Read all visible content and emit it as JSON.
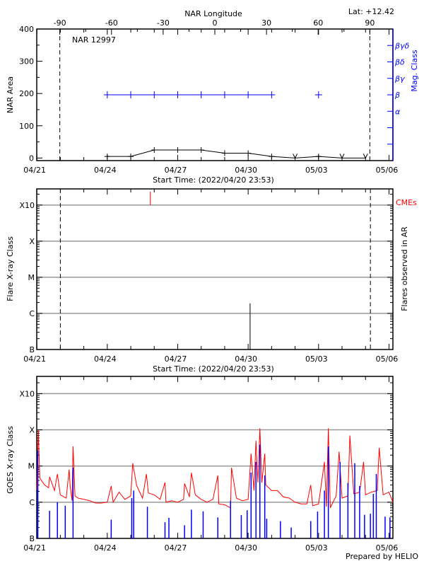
{
  "colors": {
    "axis": "#000000",
    "mag_class": "#0000ff",
    "cme": "#ff0000",
    "goes_long": "#ff0000",
    "goes_short": "#0000ff",
    "grid": "#999999"
  },
  "footer": "Prepared by HELIO",
  "chart_data": [
    {
      "type": "line",
      "title": "NAR 12997",
      "annotation": "Lat: +12.42",
      "xlabel": "Start Time: (2022/04/20 23:53)",
      "ylabel": "NAR Area",
      "y2label": "Mag. Class",
      "top_xlabel": "NAR Longitude",
      "xlim": [
        "2022-04-20 23:53",
        "2022-05-06 04:00"
      ],
      "x_ticks": [
        "04/21",
        "04/24",
        "04/27",
        "04/30",
        "05/03",
        "05/06"
      ],
      "ylim": [
        -8,
        400
      ],
      "y_ticks": [
        0,
        100,
        200,
        300,
        400
      ],
      "top_xlim": [
        -103.4,
        103.4
      ],
      "top_x_ticks": [
        -90,
        -60,
        -30,
        0,
        30,
        60,
        90
      ],
      "limb_longitudes": [
        -90,
        90
      ],
      "y2_levels": [
        "",
        "",
        "α",
        "β",
        "βγ",
        "βδ",
        "βγδ"
      ],
      "area": [
        {
          "t": "2022-04-24 00:00",
          "v": 5
        },
        {
          "t": "2022-04-25 00:00",
          "v": 5
        },
        {
          "t": "2022-04-26 00:00",
          "v": 25
        },
        {
          "t": "2022-04-27 00:00",
          "v": 25
        },
        {
          "t": "2022-04-28 00:00",
          "v": 25
        },
        {
          "t": "2022-04-29 00:00",
          "v": 15
        },
        {
          "t": "2022-04-30 00:00",
          "v": 15
        },
        {
          "t": "2022-05-01 00:00",
          "v": 5
        },
        {
          "t": "2022-05-02 00:00",
          "v": 0,
          "limit": true
        },
        {
          "t": "2022-05-03 00:00",
          "v": 5
        },
        {
          "t": "2022-05-04 00:00",
          "v": 0,
          "limit": true
        },
        {
          "t": "2022-05-05 00:00",
          "v": 0,
          "limit": true
        }
      ],
      "mag_class": [
        {
          "t": "2022-04-24 00:00",
          "c": "β"
        },
        {
          "t": "2022-04-25 00:00",
          "c": "β"
        },
        {
          "t": "2022-04-26 00:00",
          "c": "β"
        },
        {
          "t": "2022-04-27 00:00",
          "c": "β"
        },
        {
          "t": "2022-04-28 00:00",
          "c": "β"
        },
        {
          "t": "2022-04-29 00:00",
          "c": "β"
        },
        {
          "t": "2022-04-30 00:00",
          "c": "β"
        },
        {
          "t": "2022-05-01 00:00",
          "c": "β"
        },
        {
          "t": "2022-05-03 00:00",
          "c": "β"
        }
      ]
    },
    {
      "type": "bar",
      "xlabel": "Start Time: (2022/04/20 23:53)",
      "ylabel": "Flare X-ray Class",
      "y2label": "Flares observed in AR",
      "cme_label": "CMEs",
      "xlim": [
        "2022-04-20 23:53",
        "2022-05-06 04:00"
      ],
      "x_ticks": [
        "04/21",
        "04/24",
        "04/27",
        "04/30",
        "05/03",
        "05/06"
      ],
      "y_scale": "log",
      "ylim": [
        1e-07,
        0.0028
      ],
      "y_levels": [
        {
          "label": "B",
          "v": 1e-07
        },
        {
          "label": "C",
          "v": 1e-06
        },
        {
          "label": "M",
          "v": 1e-05
        },
        {
          "label": "X",
          "v": 0.0001
        },
        {
          "label": "X10",
          "v": 0.001
        }
      ],
      "limb_times": [
        "2022-04-22 00:00",
        "2022-05-05 05:00"
      ],
      "flares": [
        {
          "t": "2022-04-30 02:00",
          "v": 1.9e-06
        }
      ],
      "cmes": [
        {
          "t": "2022-04-25 20:00"
        }
      ]
    },
    {
      "type": "line",
      "ylabel": "GOES X-ray Class",
      "xlim": [
        "2022-04-20 23:53",
        "2022-05-06 04:00"
      ],
      "x_ticks": [
        "04/21",
        "04/24",
        "04/27",
        "04/30",
        "05/03",
        "05/06"
      ],
      "y_scale": "log",
      "ylim": [
        1e-07,
        0.003
      ],
      "y_levels": [
        {
          "label": "B",
          "v": 1e-07
        },
        {
          "label": "C",
          "v": 1e-06
        },
        {
          "label": "M",
          "v": 1e-05
        },
        {
          "label": "X",
          "v": 0.0001
        },
        {
          "label": "X10",
          "v": 0.001
        }
      ],
      "series": [
        {
          "channel": "long",
          "points": [
            [
              "2022-04-21 00:00",
              2.2e-06
            ],
            [
              "2022-04-21 01:30",
              0.0001
            ],
            [
              "2022-04-21 03:00",
              4.6e-06
            ],
            [
              "2022-04-21 08:00",
              3e-06
            ],
            [
              "2022-04-21 12:00",
              2.5e-06
            ],
            [
              "2022-04-21 13:00",
              5e-06
            ],
            [
              "2022-04-21 18:00",
              2.1e-06
            ],
            [
              "2022-04-21 21:00",
              6e-06
            ],
            [
              "2022-04-22 00:00",
              1.6e-06
            ],
            [
              "2022-04-22 06:00",
              1.3e-06
            ],
            [
              "2022-04-22 09:00",
              8e-06
            ],
            [
              "2022-04-22 10:00",
              2.9e-06
            ],
            [
              "2022-04-22 12:00",
              1.1e-06
            ],
            [
              "2022-04-22 13:00",
              3.5e-05
            ],
            [
              "2022-04-22 15:00",
              1.5e-06
            ],
            [
              "2022-04-22 18:00",
              1.3e-06
            ],
            [
              "2022-04-23 00:00",
              1.2e-06
            ],
            [
              "2022-04-23 06:00",
              1.1e-06
            ],
            [
              "2022-04-23 12:00",
              9.5e-07
            ],
            [
              "2022-04-23 18:00",
              9.5e-07
            ],
            [
              "2022-04-24 00:00",
              1e-06
            ],
            [
              "2022-04-24 04:00",
              2.8e-06
            ],
            [
              "2022-04-24 06:00",
              1e-06
            ],
            [
              "2022-04-24 12:00",
              1.9e-06
            ],
            [
              "2022-04-24 18:00",
              1.2e-06
            ],
            [
              "2022-04-25 00:00",
              1.5e-06
            ],
            [
              "2022-04-25 02:00",
              1.2e-05
            ],
            [
              "2022-04-25 06:00",
              2.9e-06
            ],
            [
              "2022-04-25 12:00",
              1.3e-06
            ],
            [
              "2022-04-25 16:00",
              6e-06
            ],
            [
              "2022-04-25 18:00",
              1.8e-06
            ],
            [
              "2022-04-26 00:00",
              1.6e-06
            ],
            [
              "2022-04-26 06:00",
              1.2e-06
            ],
            [
              "2022-04-26 11:00",
              3.5e-06
            ],
            [
              "2022-04-26 12:00",
              1e-06
            ],
            [
              "2022-04-26 18:00",
              1.1e-06
            ],
            [
              "2022-04-27 00:00",
              1e-06
            ],
            [
              "2022-04-27 06:00",
              1.2e-06
            ],
            [
              "2022-04-27 07:00",
              3.3e-06
            ],
            [
              "2022-04-27 12:00",
              1.4e-06
            ],
            [
              "2022-04-27 14:00",
              6.5e-06
            ],
            [
              "2022-04-27 18:00",
              1.6e-06
            ],
            [
              "2022-04-28 00:00",
              1.2e-06
            ],
            [
              "2022-04-28 06:00",
              1e-06
            ],
            [
              "2022-04-28 12:00",
              1.2e-06
            ],
            [
              "2022-04-28 17:00",
              5.5e-06
            ],
            [
              "2022-04-28 18:00",
              9e-07
            ],
            [
              "2022-04-29 00:00",
              8.5e-07
            ],
            [
              "2022-04-29 06:00",
              7e-07
            ],
            [
              "2022-04-29 07:00",
              9e-06
            ],
            [
              "2022-04-29 12:00",
              1.3e-06
            ],
            [
              "2022-04-29 18:00",
              1.1e-06
            ],
            [
              "2022-04-30 00:00",
              1.2e-06
            ],
            [
              "2022-04-30 03:00",
              2.2e-05
            ],
            [
              "2022-04-30 06:00",
              2.1e-06
            ],
            [
              "2022-04-30 08:00",
              5e-05
            ],
            [
              "2022-04-30 10:00",
              3.5e-06
            ],
            [
              "2022-04-30 12:00",
              0.00011
            ],
            [
              "2022-04-30 14:00",
              3.5e-06
            ],
            [
              "2022-04-30 17:00",
              2.2e-05
            ],
            [
              "2022-04-30 18:00",
              3e-06
            ],
            [
              "2022-05-01 00:00",
              2.1e-06
            ],
            [
              "2022-05-01 06:00",
              2.1e-06
            ],
            [
              "2022-05-01 12:00",
              1.4e-06
            ],
            [
              "2022-05-01 18:00",
              1.3e-06
            ],
            [
              "2022-05-02 00:00",
              1e-06
            ],
            [
              "2022-05-02 06:00",
              9e-07
            ],
            [
              "2022-05-02 12:00",
              9e-07
            ],
            [
              "2022-05-02 16:00",
              3e-06
            ],
            [
              "2022-05-02 18:00",
              8e-07
            ],
            [
              "2022-05-03 00:00",
              9e-07
            ],
            [
              "2022-05-03 06:00",
              1.3e-05
            ],
            [
              "2022-05-03 08:00",
              7.5e-07
            ],
            [
              "2022-05-03 10:00",
              0.00011
            ],
            [
              "2022-05-03 12:00",
              7e-07
            ],
            [
              "2022-05-03 18:00",
              1.5e-06
            ],
            [
              "2022-05-03 21:00",
              2.5e-05
            ],
            [
              "2022-05-04 00:00",
              1.3e-06
            ],
            [
              "2022-05-04 06:00",
              1.5e-06
            ],
            [
              "2022-05-04 08:00",
              7e-05
            ],
            [
              "2022-05-04 12:00",
              1.7e-06
            ],
            [
              "2022-05-04 18:00",
              1.9e-06
            ],
            [
              "2022-05-04 22:00",
              1.3e-05
            ],
            [
              "2022-05-05 00:00",
              1.6e-06
            ],
            [
              "2022-05-05 06:00",
              1.9e-06
            ],
            [
              "2022-05-05 12:00",
              2.1e-06
            ],
            [
              "2022-05-05 14:00",
              3.2e-05
            ],
            [
              "2022-05-05 18:00",
              1.6e-06
            ],
            [
              "2022-05-06 00:00",
              1.9e-06
            ],
            [
              "2022-05-06 04:00",
              1e-06
            ]
          ]
        },
        {
          "channel": "short",
          "points": [
            [
              "2022-04-21 01:00",
              2.7e-05
            ],
            [
              "2022-04-21 13:00",
              5.8e-07
            ],
            [
              "2022-04-21 21:00",
              1e-06
            ],
            [
              "2022-04-22 05:00",
              8e-07
            ],
            [
              "2022-04-22 13:00",
              9e-06
            ],
            [
              "2022-04-24 04:00",
              3.3e-07
            ],
            [
              "2022-04-25 01:00",
              1.3e-06
            ],
            [
              "2022-04-25 03:00",
              2.1e-06
            ],
            [
              "2022-04-25 17:00",
              7.5e-07
            ],
            [
              "2022-04-26 11:00",
              2.8e-07
            ],
            [
              "2022-04-26 15:00",
              3.7e-07
            ],
            [
              "2022-04-27 07:00",
              2.3e-07
            ],
            [
              "2022-04-27 14:00",
              6.2e-07
            ],
            [
              "2022-04-28 02:00",
              5.6e-07
            ],
            [
              "2022-04-28 17:00",
              3.8e-07
            ],
            [
              "2022-04-29 06:00",
              1.1e-06
            ],
            [
              "2022-04-29 17:00",
              4.4e-07
            ],
            [
              "2022-04-29 23:00",
              6e-07
            ],
            [
              "2022-04-30 03:00",
              6.6e-06
            ],
            [
              "2022-04-30 08:00",
              1.3e-05
            ],
            [
              "2022-04-30 12:00",
              3.9e-05
            ],
            [
              "2022-04-30 17:00",
              5.5e-06
            ],
            [
              "2022-04-30 19:00",
              3.5e-07
            ],
            [
              "2022-05-01 09:00",
              3e-07
            ],
            [
              "2022-05-01 20:00",
              2e-07
            ],
            [
              "2022-05-02 16:00",
              3e-07
            ],
            [
              "2022-05-02 23:00",
              5.5e-07
            ],
            [
              "2022-05-03 06:00",
              2.1e-06
            ],
            [
              "2022-05-03 10:00",
              3.5e-05
            ],
            [
              "2022-05-03 22:00",
              1.3e-05
            ],
            [
              "2022-05-04 06:00",
              3.4e-06
            ],
            [
              "2022-05-04 13:00",
              1.2e-05
            ],
            [
              "2022-05-04 18:00",
              2.8e-06
            ],
            [
              "2022-05-04 23:00",
              4.5e-07
            ],
            [
              "2022-05-05 05:00",
              4.8e-07
            ],
            [
              "2022-05-05 08:00",
              1.7e-06
            ],
            [
              "2022-05-05 11:00",
              6e-06
            ],
            [
              "2022-05-05 20:00",
              4e-07
            ],
            [
              "2022-05-06 01:00",
              3.8e-07
            ]
          ]
        }
      ]
    }
  ]
}
